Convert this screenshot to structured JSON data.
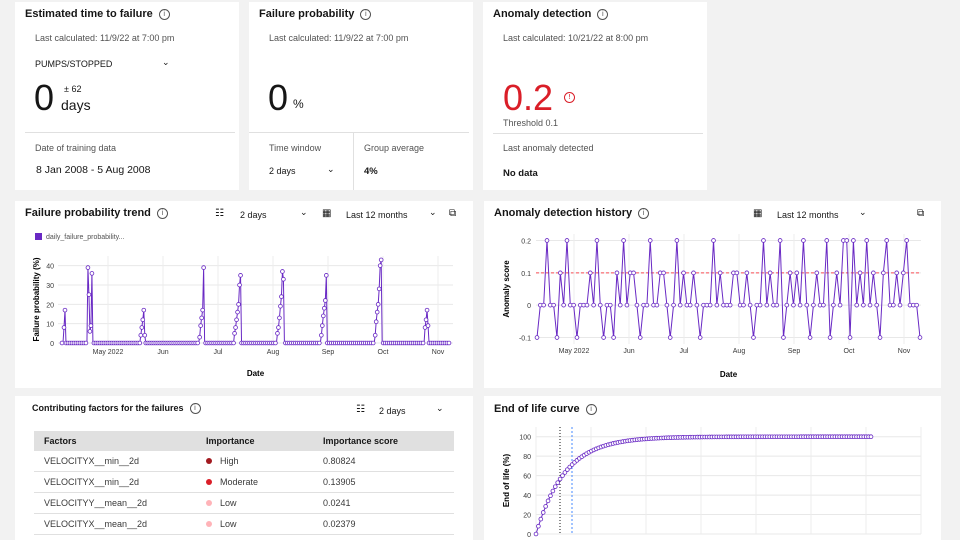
{
  "ttf": {
    "title": "Estimated time to failure",
    "last_calc": "Last calculated: 11/9/22 at 7:00 pm",
    "asset": "PUMPS/STOPPED",
    "value": "0",
    "pm": "± 62",
    "unit": "days",
    "training_label": "Date of training data",
    "training_value": "8 Jan 2008 - 5 Aug 2008"
  },
  "fp": {
    "title": "Failure probability",
    "last_calc": "Last calculated: 11/9/22 at 7:00 pm",
    "value": "0",
    "unit": "%",
    "window_label": "Time window",
    "window_value": "2 days",
    "group_label": "Group average",
    "group_value": "4%"
  },
  "ad": {
    "title": "Anomaly detection",
    "last_calc": "Last calculated: 10/21/22 at 8:00 pm",
    "value": "0.2",
    "value_color": "#da1e28",
    "threshold": "Threshold 0.1",
    "last_label": "Last anomaly detected",
    "last_value": "No data"
  },
  "fpt": {
    "title": "Failure probability trend",
    "window": "2 days",
    "range": "Last 12 months"
  },
  "adh": {
    "title": "Anomaly detection history",
    "range": "Last 12 months"
  },
  "cf": {
    "title": "Contributing factors for the failures",
    "window": "2 days",
    "headers": [
      "Factors",
      "Importance",
      "Importance score"
    ],
    "rows": [
      {
        "factor": "VELOCITYX__min__2d",
        "importance": "High",
        "color": "#a2191f",
        "score": "0.80824"
      },
      {
        "factor": "VELOCITYX__min__2d",
        "importance": "Moderate",
        "color": "#da1e28",
        "score": "0.13905"
      },
      {
        "factor": "VELOCITYY__mean__2d",
        "importance": "Low",
        "color": "#ffb3b8",
        "score": "0.0241"
      },
      {
        "factor": "VELOCITYX__mean__2d",
        "importance": "Low",
        "color": "#ffb3b8",
        "score": "0.02379"
      }
    ]
  },
  "eol": {
    "title": "End of life curve"
  },
  "chart_data": [
    {
      "type": "line",
      "title": "Failure probability trend",
      "legend": "daily_failure_probability...",
      "xlabel": "Date",
      "ylabel": "Failure probability (%)",
      "ylim": [
        0,
        45
      ],
      "yticks": [
        0,
        10,
        20,
        30,
        40
      ],
      "xticks": [
        "May 2022",
        "Jun",
        "Jul",
        "Aug",
        "Sep",
        "Oct",
        "Nov"
      ],
      "color": "#6929c4",
      "values": [
        0,
        0,
        8,
        17,
        0,
        0,
        0,
        0,
        0,
        0,
        0,
        0,
        0,
        0,
        0,
        0,
        0,
        0,
        0,
        0,
        0,
        0,
        0,
        0,
        0,
        0,
        39,
        25,
        6,
        9,
        36,
        0,
        0,
        0,
        0,
        0,
        0,
        0,
        0,
        0,
        0,
        0,
        0,
        0,
        0,
        0,
        0,
        0,
        0,
        0,
        0,
        0,
        0,
        0,
        0,
        0,
        0,
        0,
        0,
        0,
        0,
        0,
        0,
        0,
        0,
        0,
        0,
        0,
        0,
        0,
        0,
        0,
        0,
        0,
        0,
        0,
        0,
        0,
        0,
        4,
        8,
        12,
        17,
        4,
        0,
        0,
        0,
        0,
        0,
        0,
        0,
        0,
        0,
        0,
        0,
        0,
        0,
        0,
        0,
        0,
        0,
        0,
        0,
        0,
        0,
        0,
        0,
        0,
        0,
        0,
        0,
        0,
        0,
        0,
        0,
        0,
        0,
        0,
        0,
        0,
        0,
        0,
        0,
        0,
        0,
        0,
        0,
        0,
        0,
        0,
        0,
        0,
        0,
        0,
        0,
        0,
        0,
        0,
        3,
        9,
        13,
        17,
        39,
        0,
        0,
        0,
        0,
        0,
        0,
        0,
        0,
        0,
        0,
        0,
        0,
        0,
        0,
        0,
        0,
        0,
        0,
        0,
        0,
        0,
        0,
        0,
        0,
        0,
        0,
        0,
        0,
        0,
        0,
        5,
        8,
        12,
        16,
        20,
        30,
        35,
        0,
        0,
        0,
        0,
        0,
        0,
        0,
        0,
        0,
        0,
        0,
        0,
        0,
        0,
        0,
        0,
        0,
        0,
        0,
        0,
        0,
        0,
        0,
        0,
        0,
        0,
        0,
        0,
        0,
        0,
        0,
        0,
        0,
        0,
        0,
        0,
        5,
        8,
        13,
        19,
        24,
        37,
        33,
        0,
        0,
        0,
        0,
        0,
        0,
        0,
        0,
        0,
        0,
        0,
        0,
        0,
        0,
        0,
        0,
        0,
        0,
        0,
        0,
        0,
        0,
        0,
        0,
        0,
        0,
        0,
        0,
        0,
        0,
        0,
        0,
        0,
        0,
        0,
        0,
        0,
        4,
        9,
        14,
        18,
        22,
        35,
        0,
        0,
        0,
        0,
        0,
        0,
        0,
        0,
        0,
        0,
        0,
        0,
        0,
        0,
        0,
        0,
        0,
        0,
        0,
        0,
        0,
        0,
        0,
        0,
        0,
        0,
        0,
        0,
        0,
        0,
        0,
        0,
        0,
        0,
        0,
        0,
        0,
        0,
        0,
        0,
        0,
        0,
        0,
        0,
        0,
        0,
        0,
        0,
        4,
        11,
        16,
        20,
        28,
        40,
        43,
        0,
        0,
        0,
        0,
        0,
        0,
        0,
        0,
        0,
        0,
        0,
        0,
        0,
        0,
        0,
        0,
        0,
        0,
        0,
        0,
        0,
        0,
        0,
        0,
        0,
        0,
        0,
        0,
        0,
        0,
        0,
        0,
        0,
        0,
        0,
        0,
        0,
        0,
        0,
        0,
        0,
        0,
        0,
        8,
        12,
        17,
        9,
        0,
        0,
        0,
        0,
        0,
        0,
        0,
        0,
        0,
        0,
        0,
        0,
        0,
        0,
        0,
        0,
        0,
        0,
        0,
        0,
        0
      ]
    },
    {
      "type": "line",
      "title": "Anomaly detection history",
      "xlabel": "Date",
      "ylabel": "Anomaly score",
      "ylim": [
        -0.12,
        0.22
      ],
      "yticks": [
        -0.1,
        0,
        0.1,
        0.2
      ],
      "threshold": 0.1,
      "xticks": [
        "May 2022",
        "Jun",
        "Jul",
        "Aug",
        "Sep",
        "Oct",
        "Nov"
      ],
      "color": "#6929c4",
      "values": [
        -0.1,
        0,
        0,
        0.2,
        0,
        0,
        -0.1,
        0.1,
        0,
        0.2,
        0,
        0,
        -0.1,
        0,
        0,
        0,
        0.1,
        0,
        0.2,
        0,
        -0.1,
        0,
        0,
        -0.1,
        0.1,
        0,
        0.2,
        0,
        0.1,
        0.1,
        0,
        -0.1,
        0,
        0,
        0.2,
        0,
        0,
        0.1,
        0.1,
        0,
        -0.1,
        0,
        0.2,
        0,
        0.1,
        0,
        0,
        0.1,
        0,
        -0.1,
        0,
        0,
        0,
        0.2,
        0,
        0.1,
        0,
        0,
        0,
        0.1,
        0.1,
        0,
        0,
        0.1,
        0,
        -0.1,
        0,
        0,
        0.2,
        0,
        0.1,
        0,
        0,
        0.2,
        -0.1,
        0,
        0.1,
        0,
        0.1,
        0,
        0.2,
        0,
        -0.1,
        0,
        0.1,
        0,
        0,
        0.2,
        -0.1,
        0,
        0.1,
        0,
        0.2,
        0.2,
        -0.1,
        0.2,
        0,
        0.1,
        0,
        0.2,
        0,
        0.1,
        0,
        -0.1,
        0.1,
        0.2,
        0,
        0,
        0.1,
        0,
        0.1,
        0.2,
        0,
        0,
        0,
        -0.1
      ]
    },
    {
      "type": "scatter",
      "title": "End of life curve",
      "ylabel": "End of life (%)",
      "ylim": [
        0,
        110
      ],
      "yticks": [
        0,
        20,
        40,
        60,
        80,
        100
      ],
      "color": "#6929c4",
      "curve": "saturating",
      "n_points": 140,
      "markers": [
        {
          "style": "dotted",
          "color": "#161616"
        },
        {
          "style": "dashed",
          "color": "#4589ff"
        }
      ]
    }
  ]
}
